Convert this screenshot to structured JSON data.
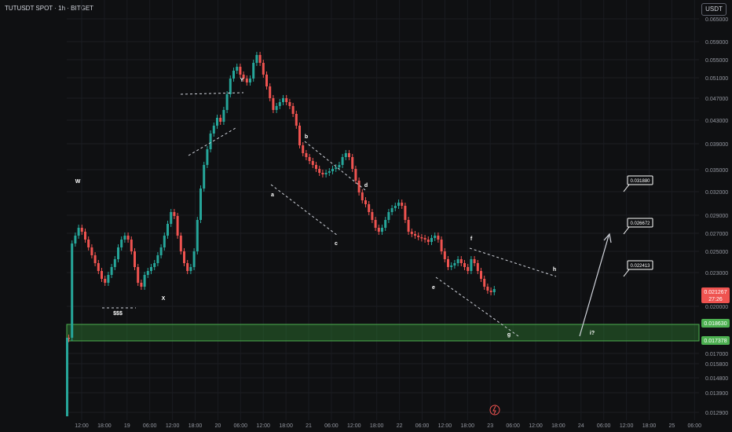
{
  "title": "TUTUSDT SPOT · 1h · BITGET",
  "currency": "USDT",
  "colors": {
    "up": "#26a69a",
    "down": "#ef5350",
    "zone": "#2e7d32",
    "zoneLine": "#4caf50",
    "bg": "#0f1012"
  },
  "chart_data": {
    "type": "candlestick",
    "y_axis_ticks": [
      "0.065000",
      "0.059000",
      "0.055000",
      "0.051000",
      "0.047000",
      "0.043000",
      "0.039000",
      "0.035000",
      "0.032000",
      "0.029000",
      "0.027000",
      "0.025000",
      "0.023000",
      "0.020000",
      "0.017000",
      "0.015800",
      "0.014800",
      "0.013900",
      "0.012900"
    ],
    "x_axis_ticks": [
      "12:00",
      "18:00",
      "19",
      "06:00",
      "12:00",
      "18:00",
      "20",
      "06:00",
      "12:00",
      "18:00",
      "21",
      "06:00",
      "12:00",
      "18:00",
      "22",
      "06:00",
      "12:00",
      "18:00",
      "23",
      "06:00",
      "12:00",
      "18:00",
      "24",
      "06:00",
      "12:00",
      "18:00",
      "25",
      "06:00"
    ],
    "current_price": "0.021267",
    "countdown": "27:26",
    "zone": {
      "top": "0.018630",
      "bottom": "0.017378"
    },
    "wave_labels": [
      "W",
      "$$$",
      "X",
      "Y",
      "a",
      "b",
      "c",
      "d",
      "e",
      "f",
      "g",
      "h",
      "i?"
    ],
    "target_labels": [
      "0.031880",
      "0.026672",
      "0.022413"
    ]
  }
}
